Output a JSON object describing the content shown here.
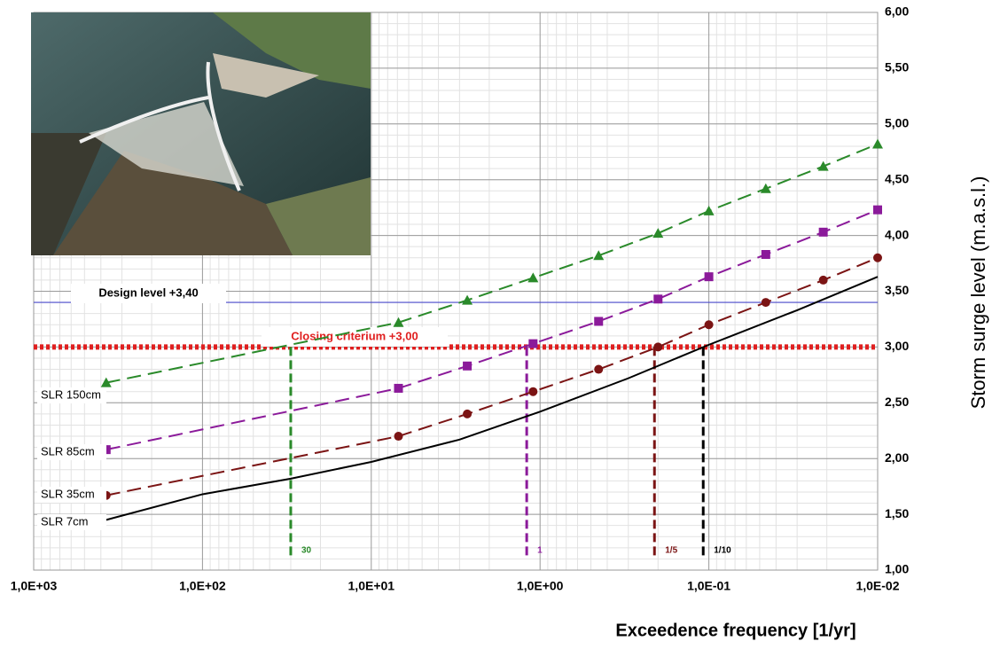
{
  "chart_data": {
    "type": "line",
    "xlabel": "Exceedence frequency [1/yr]",
    "ylabel": "Storm surge level (m.a.s.l.)",
    "xscale": "log",
    "xlim": [
      1000,
      0.01
    ],
    "ylim": [
      1,
      6
    ],
    "xticks": [
      {
        "value": 1000,
        "label": "1,0E+03"
      },
      {
        "value": 100,
        "label": "1,0E+02"
      },
      {
        "value": 10,
        "label": "1,0E+01"
      },
      {
        "value": 1,
        "label": "1,0E+00"
      },
      {
        "value": 0.1,
        "label": "1,0E-01"
      },
      {
        "value": 0.01,
        "label": "1,0E-02"
      }
    ],
    "yticks": [
      {
        "value": 1,
        "label": "1,00"
      },
      {
        "value": 1.5,
        "label": "1,50"
      },
      {
        "value": 2,
        "label": "2,00"
      },
      {
        "value": 2.5,
        "label": "2,50"
      },
      {
        "value": 3,
        "label": "3,00"
      },
      {
        "value": 3.5,
        "label": "3,50"
      },
      {
        "value": 4,
        "label": "4,00"
      },
      {
        "value": 4.5,
        "label": "4,50"
      },
      {
        "value": 5,
        "label": "5,00"
      },
      {
        "value": 5.5,
        "label": "5,50"
      },
      {
        "value": 6,
        "label": "6,00"
      }
    ],
    "grid": true,
    "series": [
      {
        "name": "SLR 7cm",
        "color": "#000000",
        "style": "solid",
        "marker": "none",
        "x": [
          372,
          100,
          30,
          10,
          3,
          1,
          0.3,
          0.1,
          0.03,
          0.01
        ],
        "values": [
          1.45,
          1.68,
          1.82,
          1.97,
          2.17,
          2.42,
          2.72,
          3.02,
          3.33,
          3.63
        ]
      },
      {
        "name": "SLR 35cm",
        "color": "#7b1414",
        "style": "dashed",
        "marker": "circle",
        "x": [
          372,
          6.9,
          2.7,
          1.1,
          0.45,
          0.2,
          0.1,
          0.046,
          0.021,
          0.01
        ],
        "values": [
          1.67,
          2.2,
          2.4,
          2.6,
          2.8,
          3.0,
          3.2,
          3.4,
          3.6,
          3.8
        ]
      },
      {
        "name": "SLR 85cm",
        "color": "#8b1a9a",
        "style": "dashed",
        "marker": "square",
        "x": [
          372,
          6.9,
          2.7,
          1.1,
          0.45,
          0.2,
          0.1,
          0.046,
          0.021,
          0.01
        ],
        "values": [
          2.08,
          2.63,
          2.83,
          3.03,
          3.23,
          3.43,
          3.63,
          3.83,
          4.03,
          4.23
        ]
      },
      {
        "name": "SLR 150cm",
        "color": "#2a8a2a",
        "style": "dashed",
        "marker": "triangle",
        "x": [
          372,
          6.9,
          2.7,
          1.1,
          0.45,
          0.2,
          0.1,
          0.046,
          0.021,
          0.01
        ],
        "values": [
          2.68,
          3.22,
          3.42,
          3.62,
          3.82,
          4.02,
          4.22,
          4.42,
          4.62,
          4.82
        ]
      }
    ],
    "ref_lines": [
      {
        "label": "Design level +3,40",
        "value": 3.4,
        "color": "#4a4acc",
        "style": "solid"
      },
      {
        "label": "Closing criterium +3,00",
        "value": 3.0,
        "color": "#e02020",
        "style": "dotted"
      }
    ],
    "verticals": [
      {
        "x": 30,
        "top": 3.0,
        "label": "30",
        "color": "#2a8a2a"
      },
      {
        "x": 1.2,
        "top": 3.0,
        "label": "1",
        "color": "#8b1a9a"
      },
      {
        "x": 0.21,
        "top": 3.0,
        "label": "1/5",
        "color": "#7b1414"
      },
      {
        "x": 0.108,
        "top": 3.0,
        "label": "1/10",
        "color": "#000000"
      }
    ]
  }
}
